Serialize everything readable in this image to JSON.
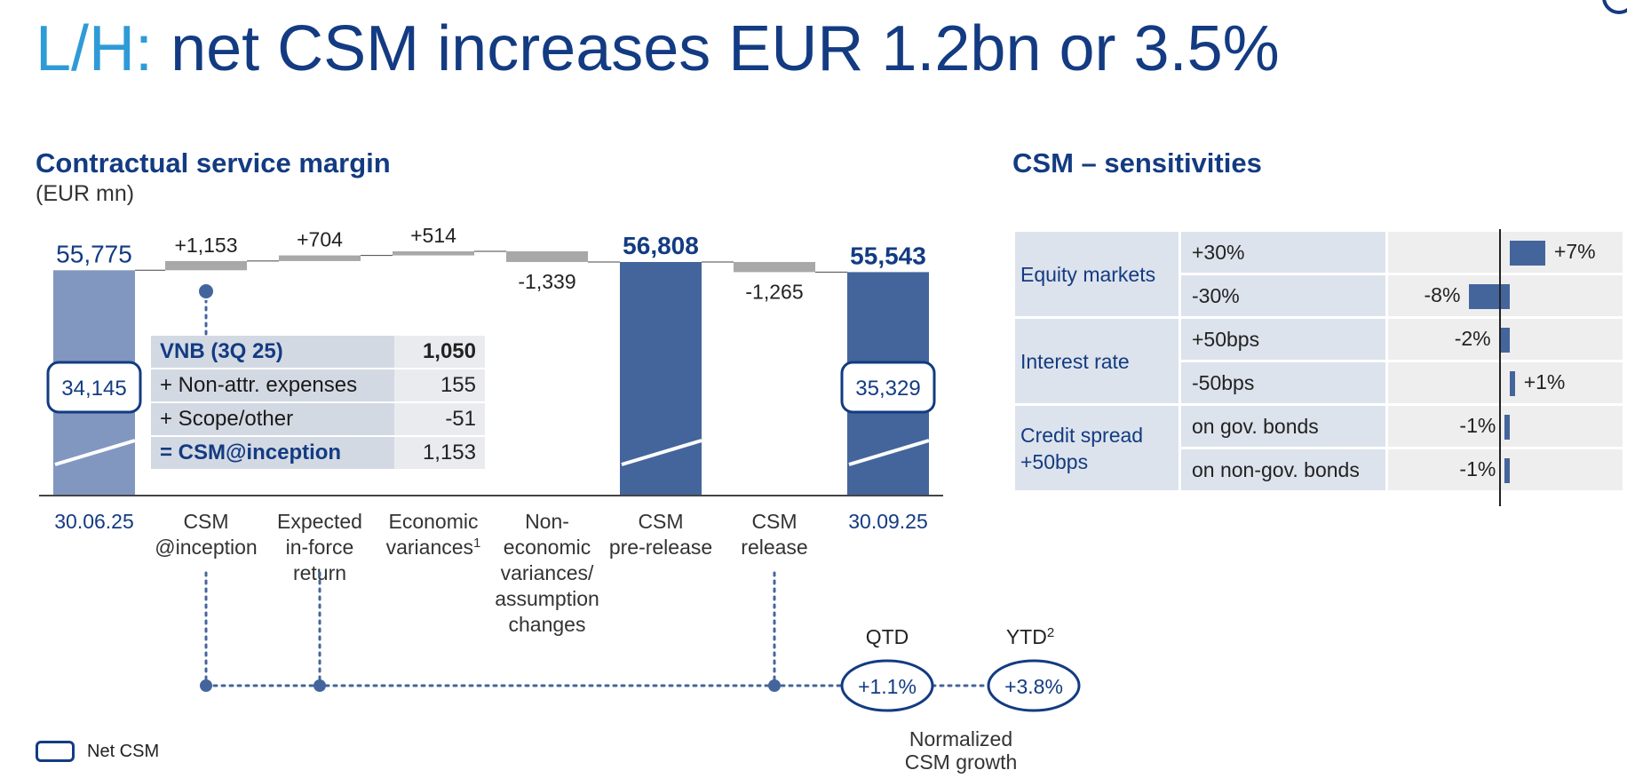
{
  "header": {
    "title_prefix": "L/H:",
    "title_main": "net CSM increases EUR 1.2bn or 3.5%"
  },
  "left_panel": {
    "title": "Contractual service margin",
    "unit": "(EUR mn)"
  },
  "right_panel": {
    "title": "CSM – sensitivities"
  },
  "chart_data": [
    {
      "type": "bar",
      "subtype": "waterfall",
      "title": "Contractual service margin",
      "ylabel": "(EUR mn)",
      "categories": [
        "30.06.25",
        "CSM @inception",
        "Expected in-force return",
        "Economic variances¹",
        "Non-economic variances/ assumption changes",
        "CSM pre-release",
        "CSM release",
        "30.09.25"
      ],
      "values": [
        55775,
        1153,
        704,
        514,
        -1339,
        56808,
        -1265,
        55543
      ],
      "value_labels": [
        "55,775",
        "+1,153",
        "+704",
        "+514",
        "-1,339",
        "56,808",
        "-1,265",
        "55,543"
      ],
      "bar_kind": [
        "total",
        "delta",
        "delta",
        "delta",
        "delta",
        "total",
        "delta",
        "total"
      ],
      "net_csm": [
        {
          "category": "30.06.25",
          "value": "34,145"
        },
        {
          "category": "30.09.25",
          "value": "35,329"
        }
      ],
      "colors": {
        "total": "#44659c",
        "start_total": "#8197c0",
        "delta": "#a8a8a8"
      },
      "legend": [
        {
          "name": "Net CSM",
          "position": "bottom-left"
        }
      ]
    },
    {
      "type": "bar",
      "subtype": "horizontal",
      "title": "CSM – sensitivities",
      "rows": [
        {
          "group": "Equity markets",
          "label": "+30%",
          "value": 7,
          "text": "+7%"
        },
        {
          "group": "Equity markets",
          "label": "-30%",
          "value": -8,
          "text": "-8%"
        },
        {
          "group": "Interest rate",
          "label": "+50bps",
          "value": -2,
          "text": "-2%"
        },
        {
          "group": "Interest rate",
          "label": "-50bps",
          "value": 1,
          "text": "+1%"
        },
        {
          "group": "Credit spread +50bps",
          "label": "on gov. bonds",
          "value": -1,
          "text": "-1%"
        },
        {
          "group": "Credit spread +50bps",
          "label": "on non-gov. bonds",
          "value": -1,
          "text": "-1%"
        }
      ],
      "unit": "%",
      "color": "#44659c"
    }
  ],
  "chart_labels": {
    "categories": [
      "30.06.25",
      "CSM\n@inception",
      "Expected\nin-force\nreturn",
      "Economic\nvariances",
      "Non-\neconomic\nvariances/\nassumption\nchanges",
      "CSM\npre-release",
      "CSM\nrelease",
      "30.09.25"
    ],
    "economic_footnote": "1"
  },
  "vnb_table": {
    "rows": [
      {
        "label": "VNB (3Q 25)",
        "value": "1,050"
      },
      {
        "label": "+  Non-attr. expenses",
        "value": "155"
      },
      {
        "label": "+  Scope/other",
        "value": "-51"
      },
      {
        "label": "=  CSM@inception",
        "value": "1,153"
      }
    ]
  },
  "sensitivity_groups": [
    {
      "name": "Equity markets",
      "rows": [
        {
          "label": "+30%",
          "value": "+7%"
        },
        {
          "label": "-30%",
          "value": "-8%"
        }
      ]
    },
    {
      "name": "Interest rate",
      "rows": [
        {
          "label": "+50bps",
          "value": "-2%"
        },
        {
          "label": "-50bps",
          "value": "+1%"
        }
      ]
    },
    {
      "name_line1": "Credit spread",
      "name_line2": "+50bps",
      "rows": [
        {
          "label": "on gov. bonds",
          "value": "-1%"
        },
        {
          "label": "on non-gov. bonds",
          "value": "-1%"
        }
      ]
    }
  ],
  "normalized_growth": {
    "qtd_label": "QTD",
    "qtd_value": "+1.1%",
    "ytd_label": "YTD",
    "ytd_footnote": "2",
    "ytd_value": "+3.8%",
    "caption_line1": "Normalized",
    "caption_line2": "CSM growth"
  },
  "legend": {
    "net_csm": "Net CSM"
  }
}
